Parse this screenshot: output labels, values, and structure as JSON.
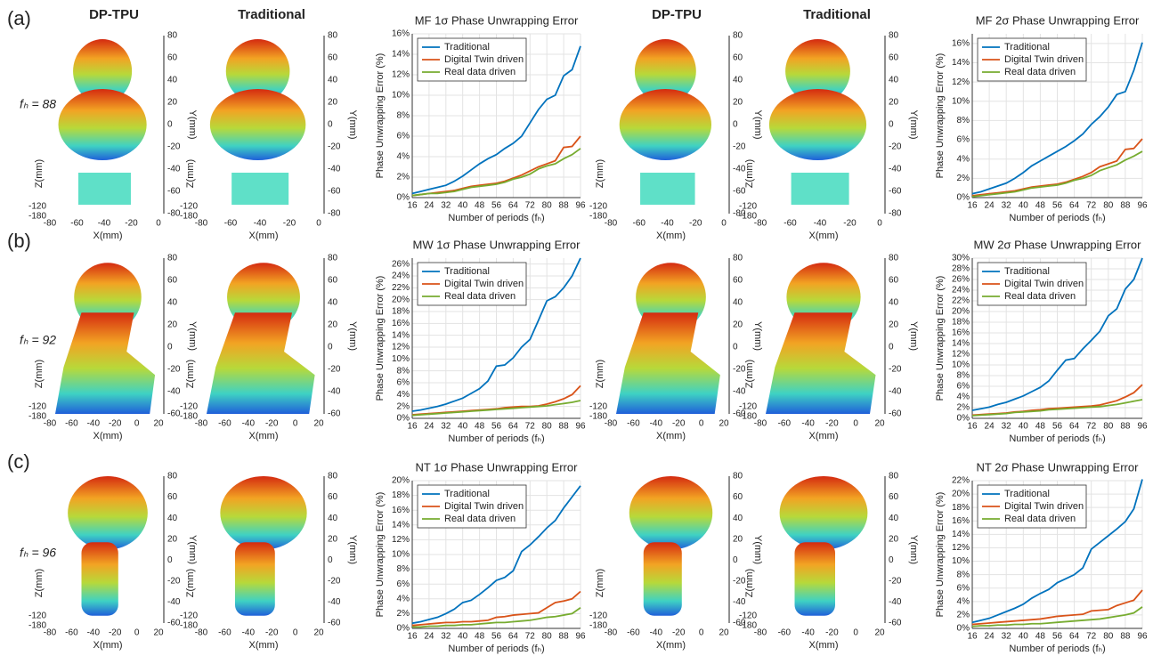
{
  "panel_labels": [
    "(a)",
    "(b)",
    "(c)"
  ],
  "column_headers": [
    "DP-TPU",
    "Traditional",
    "DP-TPU",
    "Traditional"
  ],
  "rows": [
    {
      "fh": "fₕ = 88",
      "render": {
        "xticks": [
          -80,
          -60,
          -40,
          -20,
          0
        ],
        "yticks": [
          80,
          60,
          40,
          20,
          0,
          -20,
          -40,
          -60,
          -80
        ],
        "zticks": [
          -120,
          -180
        ],
        "xlabel": "X(mm)",
        "ylabel": "Y(mm)",
        "zlabel": "Z(mm)"
      }
    },
    {
      "fh": "fₕ = 92",
      "render": {
        "xticks": [
          -80,
          -60,
          -40,
          -20,
          0,
          20
        ],
        "yticks": [
          80,
          60,
          40,
          20,
          0,
          -20,
          -40,
          -60
        ],
        "zticks": [
          -120,
          -180
        ],
        "xlabel": "X(mm)",
        "ylabel": "Y(mm)",
        "zlabel": "Z(mm)"
      }
    },
    {
      "fh": "fₕ = 96",
      "render": {
        "xticks": [
          -80,
          -60,
          -40,
          -20,
          0,
          20
        ],
        "yticks": [
          80,
          60,
          40,
          20,
          0,
          -20,
          -40,
          -60
        ],
        "zticks": [
          -120,
          -180
        ],
        "xlabel": "X(mm)",
        "ylabel": "Y(mm)",
        "zlabel": "Z(mm)"
      }
    }
  ],
  "chart_data": [
    {
      "type": "line",
      "title": "MF 1σ Phase Unwrapping Error",
      "xlabel": "Number of periods (fₕ)",
      "ylabel": "Phase Unwrapping Error (%)",
      "grid": true,
      "legend": "upper left",
      "x": [
        16,
        20,
        24,
        28,
        32,
        36,
        40,
        44,
        48,
        52,
        56,
        60,
        64,
        68,
        72,
        76,
        80,
        84,
        88,
        92,
        96
      ],
      "xlim": [
        16,
        96
      ],
      "xticks": [
        16,
        24,
        32,
        40,
        48,
        56,
        64,
        72,
        80,
        88,
        96
      ],
      "ylim": [
        0,
        16
      ],
      "yticks": [
        {
          "value": 0,
          "label": "0%"
        },
        {
          "value": 2,
          "label": "2%"
        },
        {
          "value": 4,
          "label": "4%"
        },
        {
          "value": 6,
          "label": "6%"
        },
        {
          "value": 8,
          "label": "8%"
        },
        {
          "value": 10,
          "label": "10%"
        },
        {
          "value": 12,
          "label": "12%"
        },
        {
          "value": 14,
          "label": "14%"
        },
        {
          "value": 16,
          "label": "16%"
        }
      ],
      "series": [
        {
          "name": "Traditional",
          "color": "#0072BD",
          "values": [
            0.4,
            0.6,
            0.8,
            1.0,
            1.2,
            1.6,
            2.1,
            2.7,
            3.3,
            3.8,
            4.2,
            4.8,
            5.3,
            6.0,
            7.3,
            8.6,
            9.6,
            10.0,
            11.9,
            12.5,
            14.8
          ]
        },
        {
          "name": "Digital Twin driven",
          "color": "#D95319",
          "values": [
            0.2,
            0.3,
            0.4,
            0.5,
            0.6,
            0.7,
            0.9,
            1.1,
            1.2,
            1.3,
            1.4,
            1.6,
            1.9,
            2.2,
            2.6,
            3.0,
            3.3,
            3.6,
            4.9,
            5.0,
            6.0
          ]
        },
        {
          "name": "Real data driven",
          "color": "#77AC30",
          "values": [
            0.2,
            0.3,
            0.4,
            0.4,
            0.5,
            0.6,
            0.8,
            1.0,
            1.1,
            1.2,
            1.3,
            1.5,
            1.8,
            2.0,
            2.3,
            2.8,
            3.1,
            3.3,
            3.8,
            4.2,
            4.8
          ]
        }
      ]
    },
    {
      "type": "line",
      "title": "MF 2σ Phase Unwrapping Error",
      "xlabel": "Number of periods (fₕ)",
      "ylabel": "Phase Unwrapping Error (%)",
      "grid": true,
      "legend": "upper left",
      "x": [
        16,
        20,
        24,
        28,
        32,
        36,
        40,
        44,
        48,
        52,
        56,
        60,
        64,
        68,
        72,
        76,
        80,
        84,
        88,
        92,
        96
      ],
      "xlim": [
        16,
        96
      ],
      "xticks": [
        16,
        24,
        32,
        40,
        48,
        56,
        64,
        72,
        80,
        88,
        96
      ],
      "ylim": [
        0,
        17
      ],
      "yticks": [
        {
          "value": 0,
          "label": "0%"
        },
        {
          "value": 2,
          "label": "2%"
        },
        {
          "value": 4,
          "label": "4%"
        },
        {
          "value": 6,
          "label": "6%"
        },
        {
          "value": 8,
          "label": "8%"
        },
        {
          "value": 10,
          "label": "10%"
        },
        {
          "value": 12,
          "label": "12%"
        },
        {
          "value": 14,
          "label": "14%"
        },
        {
          "value": 16,
          "label": "16%"
        }
      ],
      "series": [
        {
          "name": "Traditional",
          "color": "#0072BD",
          "values": [
            0.4,
            0.6,
            0.9,
            1.2,
            1.5,
            2.0,
            2.6,
            3.3,
            3.8,
            4.3,
            4.8,
            5.3,
            5.9,
            6.6,
            7.6,
            8.4,
            9.4,
            10.7,
            11.0,
            13.2,
            16.1
          ]
        },
        {
          "name": "Digital Twin driven",
          "color": "#D95319",
          "values": [
            0.2,
            0.3,
            0.4,
            0.5,
            0.6,
            0.7,
            0.9,
            1.1,
            1.2,
            1.3,
            1.4,
            1.6,
            1.9,
            2.2,
            2.6,
            3.2,
            3.5,
            3.8,
            5.0,
            5.1,
            6.1
          ]
        },
        {
          "name": "Real data driven",
          "color": "#77AC30",
          "values": [
            0.1,
            0.2,
            0.3,
            0.4,
            0.5,
            0.6,
            0.8,
            1.0,
            1.1,
            1.2,
            1.3,
            1.5,
            1.8,
            2.0,
            2.3,
            2.8,
            3.1,
            3.4,
            3.9,
            4.3,
            4.8
          ]
        }
      ]
    },
    {
      "type": "line",
      "title": "MW 1σ Phase Unwrapping Error",
      "xlabel": "Number of periods (fₕ)",
      "ylabel": "Phase Unwrapping Error (%)",
      "grid": true,
      "legend": "upper left",
      "x": [
        16,
        20,
        24,
        28,
        32,
        36,
        40,
        44,
        48,
        52,
        56,
        60,
        64,
        68,
        72,
        76,
        80,
        84,
        88,
        92,
        96
      ],
      "xlim": [
        16,
        96
      ],
      "xticks": [
        16,
        24,
        32,
        40,
        48,
        56,
        64,
        72,
        80,
        88,
        96
      ],
      "ylim": [
        0,
        27
      ],
      "yticks": [
        {
          "value": 0,
          "label": "0%"
        },
        {
          "value": 2,
          "label": "2%"
        },
        {
          "value": 4,
          "label": "4%"
        },
        {
          "value": 6,
          "label": "6%"
        },
        {
          "value": 8,
          "label": "8%"
        },
        {
          "value": 10,
          "label": "10%"
        },
        {
          "value": 12,
          "label": "12%"
        },
        {
          "value": 14,
          "label": "14%"
        },
        {
          "value": 16,
          "label": "16%"
        },
        {
          "value": 18,
          "label": "18%"
        },
        {
          "value": 20,
          "label": "20%"
        },
        {
          "value": 22,
          "label": "22%"
        },
        {
          "value": 24,
          "label": "24%"
        },
        {
          "value": 26,
          "label": "26%"
        }
      ],
      "series": [
        {
          "name": "Traditional",
          "color": "#0072BD",
          "values": [
            1.2,
            1.4,
            1.7,
            2.0,
            2.4,
            2.9,
            3.4,
            4.2,
            5.0,
            6.3,
            8.8,
            9.0,
            10.2,
            12.0,
            13.3,
            16.5,
            19.8,
            20.5,
            22.0,
            24.0,
            27.0
          ]
        },
        {
          "name": "Digital Twin driven",
          "color": "#D95319",
          "values": [
            0.6,
            0.7,
            0.8,
            0.9,
            1.0,
            1.1,
            1.2,
            1.3,
            1.4,
            1.5,
            1.6,
            1.8,
            1.9,
            2.0,
            2.0,
            2.1,
            2.4,
            2.8,
            3.3,
            4.0,
            5.5
          ]
        },
        {
          "name": "Real data driven",
          "color": "#77AC30",
          "values": [
            0.5,
            0.6,
            0.7,
            0.8,
            0.9,
            1.0,
            1.1,
            1.2,
            1.3,
            1.4,
            1.5,
            1.6,
            1.7,
            1.8,
            1.9,
            2.0,
            2.1,
            2.3,
            2.5,
            2.7,
            3.0
          ]
        }
      ]
    },
    {
      "type": "line",
      "title": "MW 2σ Phase Unwrapping Error",
      "xlabel": "Number of periods (fₕ)",
      "ylabel": "Phase Unwrapping Error (%)",
      "grid": true,
      "legend": "upper left",
      "x": [
        16,
        20,
        24,
        28,
        32,
        36,
        40,
        44,
        48,
        52,
        56,
        60,
        64,
        68,
        72,
        76,
        80,
        84,
        88,
        92,
        96
      ],
      "xlim": [
        16,
        96
      ],
      "xticks": [
        16,
        24,
        32,
        40,
        48,
        56,
        64,
        72,
        80,
        88,
        96
      ],
      "ylim": [
        0,
        30
      ],
      "yticks": [
        {
          "value": 0,
          "label": "0%"
        },
        {
          "value": 2,
          "label": "2%"
        },
        {
          "value": 4,
          "label": "4%"
        },
        {
          "value": 6,
          "label": "6%"
        },
        {
          "value": 8,
          "label": "8%"
        },
        {
          "value": 10,
          "label": "10%"
        },
        {
          "value": 12,
          "label": "12%"
        },
        {
          "value": 14,
          "label": "14%"
        },
        {
          "value": 16,
          "label": "16%"
        },
        {
          "value": 18,
          "label": "18%"
        },
        {
          "value": 20,
          "label": "20%"
        },
        {
          "value": 22,
          "label": "22%"
        },
        {
          "value": 24,
          "label": "24%"
        },
        {
          "value": 26,
          "label": "26%"
        },
        {
          "value": 28,
          "label": "28%"
        },
        {
          "value": 30,
          "label": "30%"
        }
      ],
      "series": [
        {
          "name": "Traditional",
          "color": "#0072BD",
          "values": [
            1.5,
            1.8,
            2.1,
            2.6,
            3.0,
            3.6,
            4.2,
            5.0,
            5.8,
            7.0,
            9.0,
            10.9,
            11.2,
            13.0,
            14.6,
            16.3,
            19.2,
            20.5,
            24.2,
            26.0,
            30.0
          ]
        },
        {
          "name": "Digital Twin driven",
          "color": "#D95319",
          "values": [
            0.6,
            0.7,
            0.8,
            0.9,
            1.0,
            1.2,
            1.3,
            1.5,
            1.6,
            1.8,
            1.9,
            2.0,
            2.1,
            2.2,
            2.3,
            2.5,
            2.9,
            3.3,
            4.0,
            4.8,
            6.3
          ]
        },
        {
          "name": "Real data driven",
          "color": "#77AC30",
          "values": [
            0.5,
            0.6,
            0.7,
            0.8,
            0.9,
            1.1,
            1.2,
            1.3,
            1.4,
            1.6,
            1.7,
            1.8,
            1.9,
            2.0,
            2.1,
            2.2,
            2.4,
            2.6,
            2.9,
            3.2,
            3.5
          ]
        }
      ]
    },
    {
      "type": "line",
      "title": "NT 1σ Phase Unwrapping Error",
      "xlabel": "Number of periods (fₕ)",
      "ylabel": "Phase Unwrapping Error (%)",
      "grid": true,
      "legend": "upper left",
      "x": [
        16,
        20,
        24,
        28,
        32,
        36,
        40,
        44,
        48,
        52,
        56,
        60,
        64,
        68,
        72,
        76,
        80,
        84,
        88,
        92,
        96
      ],
      "xlim": [
        16,
        96
      ],
      "xticks": [
        16,
        24,
        32,
        40,
        48,
        56,
        64,
        72,
        80,
        88,
        96
      ],
      "ylim": [
        0,
        20
      ],
      "yticks": [
        {
          "value": 0,
          "label": "0%"
        },
        {
          "value": 2,
          "label": "2%"
        },
        {
          "value": 4,
          "label": "4%"
        },
        {
          "value": 6,
          "label": "6%"
        },
        {
          "value": 8,
          "label": "8%"
        },
        {
          "value": 10,
          "label": "10%"
        },
        {
          "value": 12,
          "label": "12%"
        },
        {
          "value": 14,
          "label": "14%"
        },
        {
          "value": 16,
          "label": "16%"
        },
        {
          "value": 18,
          "label": "18%"
        },
        {
          "value": 20,
          "label": "20%"
        }
      ],
      "series": [
        {
          "name": "Traditional",
          "color": "#0072BD",
          "values": [
            0.7,
            0.9,
            1.2,
            1.5,
            2.0,
            2.6,
            3.5,
            3.8,
            4.6,
            5.5,
            6.5,
            6.9,
            7.8,
            10.4,
            11.3,
            12.4,
            13.6,
            14.6,
            16.3,
            17.8,
            19.3
          ]
        },
        {
          "name": "Digital Twin driven",
          "color": "#D95319",
          "values": [
            0.4,
            0.5,
            0.6,
            0.7,
            0.8,
            0.8,
            0.9,
            0.9,
            1.0,
            1.1,
            1.5,
            1.6,
            1.8,
            1.9,
            2.0,
            2.1,
            2.8,
            3.5,
            3.7,
            4.0,
            5.0
          ]
        },
        {
          "name": "Real data driven",
          "color": "#77AC30",
          "values": [
            0.2,
            0.2,
            0.3,
            0.3,
            0.4,
            0.4,
            0.5,
            0.5,
            0.6,
            0.7,
            0.8,
            0.8,
            0.9,
            1.0,
            1.1,
            1.3,
            1.5,
            1.6,
            1.8,
            2.0,
            2.8
          ]
        }
      ]
    },
    {
      "type": "line",
      "title": "NT 2σ Phase Unwrapping Error",
      "xlabel": "Number of periods (fₕ)",
      "ylabel": "Phase Unwrapping Error (%)",
      "grid": true,
      "legend": "upper left",
      "x": [
        16,
        20,
        24,
        28,
        32,
        36,
        40,
        44,
        48,
        52,
        56,
        60,
        64,
        68,
        72,
        76,
        80,
        84,
        88,
        92,
        96
      ],
      "xlim": [
        16,
        96
      ],
      "xticks": [
        16,
        24,
        32,
        40,
        48,
        56,
        64,
        72,
        80,
        88,
        96
      ],
      "ylim": [
        0,
        22
      ],
      "yticks": [
        {
          "value": 0,
          "label": "0%"
        },
        {
          "value": 2,
          "label": "2%"
        },
        {
          "value": 4,
          "label": "4%"
        },
        {
          "value": 6,
          "label": "6%"
        },
        {
          "value": 8,
          "label": "8%"
        },
        {
          "value": 10,
          "label": "10%"
        },
        {
          "value": 12,
          "label": "12%"
        },
        {
          "value": 14,
          "label": "14%"
        },
        {
          "value": 16,
          "label": "16%"
        },
        {
          "value": 18,
          "label": "18%"
        },
        {
          "value": 20,
          "label": "20%"
        },
        {
          "value": 22,
          "label": "22%"
        }
      ],
      "series": [
        {
          "name": "Traditional",
          "color": "#0072BD",
          "values": [
            0.9,
            1.2,
            1.5,
            2.0,
            2.5,
            3.0,
            3.6,
            4.5,
            5.2,
            5.8,
            6.8,
            7.4,
            8.0,
            9.0,
            11.8,
            12.8,
            13.8,
            14.8,
            15.9,
            17.8,
            22.2
          ]
        },
        {
          "name": "Digital Twin driven",
          "color": "#D95319",
          "values": [
            0.6,
            0.7,
            0.8,
            0.9,
            1.0,
            1.1,
            1.2,
            1.3,
            1.4,
            1.6,
            1.8,
            1.9,
            2.0,
            2.1,
            2.6,
            2.7,
            2.8,
            3.4,
            3.8,
            4.2,
            5.7
          ]
        },
        {
          "name": "Real data driven",
          "color": "#77AC30",
          "values": [
            0.3,
            0.4,
            0.4,
            0.5,
            0.5,
            0.6,
            0.6,
            0.7,
            0.7,
            0.8,
            0.9,
            1.0,
            1.1,
            1.2,
            1.3,
            1.4,
            1.6,
            1.8,
            2.0,
            2.3,
            3.2
          ]
        }
      ]
    }
  ]
}
